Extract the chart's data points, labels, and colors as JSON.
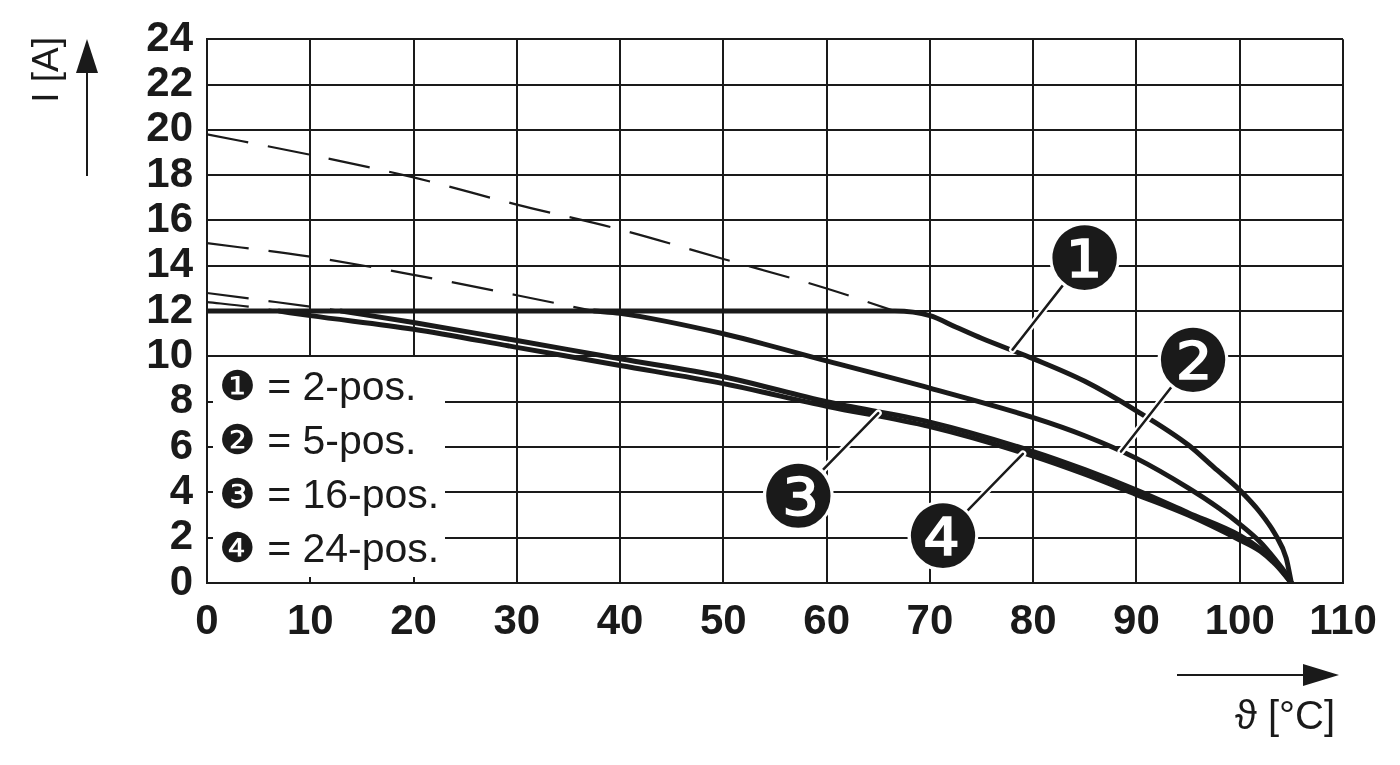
{
  "chart_data": {
    "type": "line",
    "xlabel": "ϑ [°C]",
    "ylabel": "I [A]",
    "xlim": [
      0,
      110
    ],
    "xticks": [
      0,
      10,
      20,
      30,
      40,
      50,
      60,
      70,
      80,
      90,
      100,
      110
    ],
    "ylim": [
      0,
      24
    ],
    "yticks": [
      0,
      2,
      4,
      6,
      8,
      10,
      12,
      14,
      16,
      18,
      20,
      22,
      24
    ],
    "grid": true,
    "marker": "none",
    "series": [
      {
        "color": "#1a1a1a",
        "line_style": "solid",
        "x": [
          0,
          66.6,
          70,
          72.5,
          75,
          80,
          85,
          90,
          95,
          97.5,
          100,
          102,
          103.5,
          104.5,
          105
        ],
        "values": [
          12,
          12,
          11.8,
          11.3,
          10.8,
          9.9,
          8.9,
          7.6,
          6.1,
          5.1,
          4.1,
          3.1,
          2.1,
          1.1,
          0
        ]
      },
      {
        "color": "#1a1a1a",
        "line_style": "solid",
        "x": [
          37.5,
          40,
          50,
          60,
          70,
          80,
          85,
          90,
          95,
          98,
          100,
          102,
          103.5,
          104.5,
          105
        ],
        "values": [
          12,
          11.9,
          11.0,
          9.8,
          8.6,
          7.3,
          6.5,
          5.5,
          4.2,
          3.3,
          2.6,
          1.8,
          1.0,
          0.4,
          0
        ]
      },
      {
        "color": "#1a1a1a",
        "line_style": "solid",
        "x": [
          13,
          20,
          30,
          40,
          50,
          60,
          70,
          80,
          85,
          90,
          95,
          100,
          102,
          103.5,
          105
        ],
        "values": [
          12,
          11.5,
          10.7,
          9.9,
          9.1,
          8.0,
          7.1,
          5.8,
          5.0,
          4.1,
          3.1,
          2.1,
          1.5,
          0.9,
          0
        ]
      },
      {
        "color": "#1a1a1a",
        "line_style": "solid",
        "x": [
          7,
          10,
          20,
          30,
          40,
          50,
          60,
          70,
          80,
          85,
          90,
          95,
          100,
          102,
          103.5,
          105
        ],
        "values": [
          12,
          11.8,
          11.2,
          10.4,
          9.6,
          8.8,
          7.8,
          6.9,
          5.6,
          4.8,
          3.9,
          3.0,
          1.9,
          1.4,
          0.8,
          0
        ]
      },
      {
        "color": "#1a1a1a",
        "line_style": "dashed",
        "x": [
          0,
          10,
          20,
          30,
          40,
          50,
          60,
          66.6
        ],
        "values": [
          19.8,
          18.9,
          17.9,
          16.7,
          15.6,
          14.3,
          13.0,
          12
        ]
      },
      {
        "color": "#1a1a1a",
        "line_style": "dashed",
        "x": [
          0,
          10,
          20,
          30,
          37.5
        ],
        "values": [
          15.0,
          14.4,
          13.6,
          12.7,
          12
        ]
      },
      {
        "color": "#1a1a1a",
        "line_style": "dashed",
        "x": [
          0,
          5,
          10,
          13
        ],
        "values": [
          12.8,
          12.5,
          12.2,
          12
        ]
      },
      {
        "color": "#1a1a1a",
        "line_style": "dashed",
        "x": [
          0,
          4,
          7
        ],
        "values": [
          12.4,
          12.2,
          12
        ]
      }
    ],
    "annotations": [
      {
        "text": "❶",
        "x": 78,
        "y": 10.3
      },
      {
        "text": "❷",
        "x": 88.5,
        "y": 5.8
      },
      {
        "text": "❸",
        "x": 65,
        "y": 7.5
      },
      {
        "text": "❹",
        "x": 79,
        "y": 5.7
      },
      "❶ = 2-pos.",
      "❷ = 5-pos.",
      "❸ = 16-pos.",
      "❹ = 24-pos."
    ]
  }
}
